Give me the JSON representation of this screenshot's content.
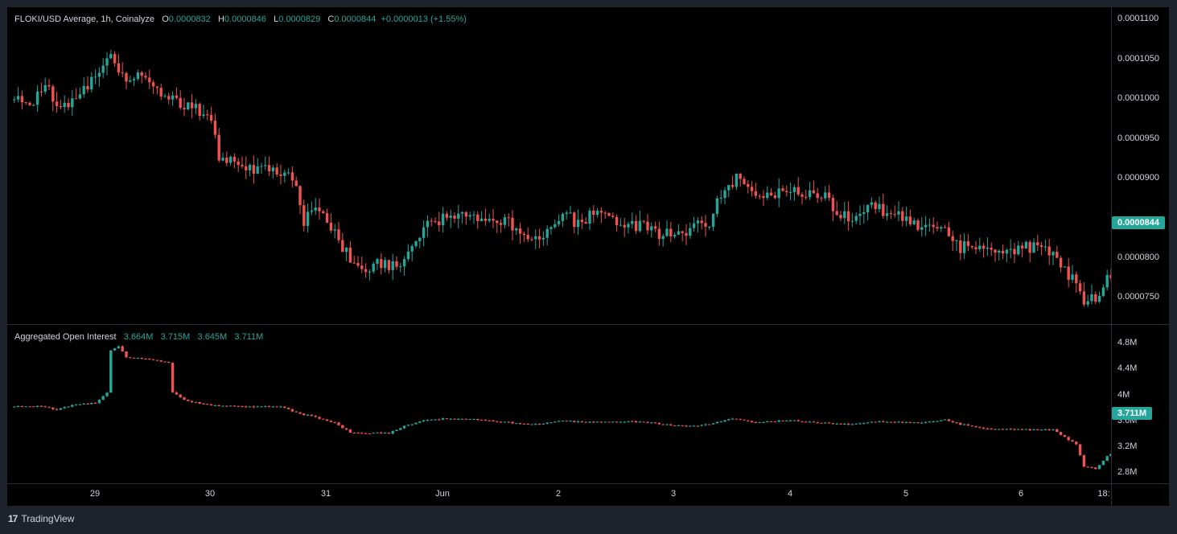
{
  "price_legend": {
    "title": "FLOKI/USD Average, 1h, Coinalyze",
    "o_label": "O",
    "o_value": "0.0000832",
    "h_label": "H",
    "h_value": "0.0000846",
    "l_label": "L",
    "l_value": "0.0000829",
    "c_label": "C",
    "c_value": "0.0000844",
    "change": "+0.0000013 (+1.55%)"
  },
  "oi_legend": {
    "title": "Aggregated Open Interest",
    "o_value": "3.664M",
    "h_value": "3.715M",
    "l_value": "3.645M",
    "c_value": "3.711M"
  },
  "price_axis": [
    "0.0001100",
    "0.0001050",
    "0.0001000",
    "0.0000950",
    "0.0000900",
    "0.0000800",
    "0.0000750"
  ],
  "oi_axis": [
    "4.8M",
    "4.4M",
    "4M",
    "3.6M",
    "3.2M",
    "2.8M"
  ],
  "time_axis": [
    "29",
    "30",
    "31",
    "Jun",
    "2",
    "3",
    "4",
    "5",
    "6",
    "18:"
  ],
  "current_price_tag": "0.0000844",
  "current_oi_tag": "3.711M",
  "footer": {
    "brand": "TradingView",
    "logo_glyph": "17"
  },
  "colors": {
    "up": "#26a69a",
    "down": "#ef5350",
    "background": "#000000",
    "frame": "#1e222d"
  },
  "chart_data": [
    {
      "type": "candlestick",
      "title": "FLOKI/USD Average, 1h, Coinalyze",
      "ylim": [
        7.25e-05,
        0.0001115
      ],
      "x_range": [
        "May 28 01:00",
        "Jun 6 18:00"
      ],
      "resolution": "1h",
      "anchors": [
        {
          "t": 0,
          "v": 0.0001005
        },
        {
          "t": 5,
          "v": 9.98e-05
        },
        {
          "t": 9,
          "v": 0.0001025
        },
        {
          "t": 13,
          "v": 9.93e-05
        },
        {
          "t": 17,
          "v": 0.0001003
        },
        {
          "t": 21,
          "v": 0.000103
        },
        {
          "t": 26,
          "v": 0.0001062
        },
        {
          "t": 30,
          "v": 0.000103
        },
        {
          "t": 34,
          "v": 0.0001037
        },
        {
          "t": 40,
          "v": 0.000101
        },
        {
          "t": 45,
          "v": 9.98e-05
        },
        {
          "t": 52,
          "v": 9.85e-05
        },
        {
          "t": 54,
          "v": 9.3e-05
        },
        {
          "t": 58,
          "v": 9.35e-05
        },
        {
          "t": 62,
          "v": 9.18e-05
        },
        {
          "t": 68,
          "v": 9.22e-05
        },
        {
          "t": 73,
          "v": 9.07e-05
        },
        {
          "t": 76,
          "v": 8.55e-05
        },
        {
          "t": 80,
          "v": 8.7e-05
        },
        {
          "t": 84,
          "v": 8.38e-05
        },
        {
          "t": 88,
          "v": 8.07e-05
        },
        {
          "t": 92,
          "v": 7.97e-05
        },
        {
          "t": 98,
          "v": 8e-05
        },
        {
          "t": 102,
          "v": 8e-05
        },
        {
          "t": 104,
          "v": 8.3e-05
        },
        {
          "t": 108,
          "v": 8.48e-05
        },
        {
          "t": 112,
          "v": 8.55e-05
        },
        {
          "t": 116,
          "v": 8.58e-05
        },
        {
          "t": 122,
          "v": 8.53e-05
        },
        {
          "t": 128,
          "v": 8.52e-05
        },
        {
          "t": 133,
          "v": 8.4e-05
        },
        {
          "t": 136,
          "v": 8.3e-05
        },
        {
          "t": 140,
          "v": 8.5e-05
        },
        {
          "t": 144,
          "v": 8.6e-05
        },
        {
          "t": 147,
          "v": 8.5e-05
        },
        {
          "t": 151,
          "v": 8.62e-05
        },
        {
          "t": 155,
          "v": 8.6e-05
        },
        {
          "t": 160,
          "v": 8.45e-05
        },
        {
          "t": 164,
          "v": 8.48e-05
        },
        {
          "t": 168,
          "v": 8.35e-05
        },
        {
          "t": 174,
          "v": 8.4e-05
        },
        {
          "t": 178,
          "v": 8.48e-05
        },
        {
          "t": 180,
          "v": 8.4e-05
        },
        {
          "t": 183,
          "v": 8.75e-05
        },
        {
          "t": 186,
          "v": 8.95e-05
        },
        {
          "t": 188,
          "v": 9.1e-05
        },
        {
          "t": 191,
          "v": 8.9e-05
        },
        {
          "t": 196,
          "v": 8.88e-05
        },
        {
          "t": 202,
          "v": 8.93e-05
        },
        {
          "t": 208,
          "v": 8.88e-05
        },
        {
          "t": 212,
          "v": 8.8e-05
        },
        {
          "t": 214,
          "v": 8.6e-05
        },
        {
          "t": 218,
          "v": 8.6e-05
        },
        {
          "t": 222,
          "v": 8.7e-05
        },
        {
          "t": 228,
          "v": 8.65e-05
        },
        {
          "t": 232,
          "v": 8.58e-05
        },
        {
          "t": 236,
          "v": 8.43e-05
        },
        {
          "t": 240,
          "v": 8.5e-05
        },
        {
          "t": 243,
          "v": 8.4e-05
        },
        {
          "t": 246,
          "v": 8.2e-05
        },
        {
          "t": 250,
          "v": 8.22e-05
        },
        {
          "t": 254,
          "v": 8.23e-05
        },
        {
          "t": 258,
          "v": 8.15e-05
        },
        {
          "t": 262,
          "v": 8.18e-05
        },
        {
          "t": 266,
          "v": 8.25e-05
        },
        {
          "t": 269,
          "v": 8.15e-05
        },
        {
          "t": 272,
          "v": 8e-05
        },
        {
          "t": 276,
          "v": 7.75e-05
        },
        {
          "t": 278,
          "v": 7.52e-05
        },
        {
          "t": 281,
          "v": 7.6e-05
        },
        {
          "t": 284,
          "v": 7.82e-05
        },
        {
          "t": 288,
          "v": 7.95e-05
        },
        {
          "t": 291,
          "v": 8.1e-05
        },
        {
          "t": 294,
          "v": 8.35e-05
        },
        {
          "t": 296,
          "v": 8.44e-05
        }
      ]
    },
    {
      "type": "candlestick",
      "title": "Aggregated Open Interest",
      "ylim": [
        2.7,
        5.0
      ],
      "units": "M",
      "x_range": [
        "May 28 01:00",
        "Jun 6 18:00"
      ],
      "resolution": "1h",
      "anchors": [
        {
          "t": 0,
          "v": 3.84
        },
        {
          "t": 8,
          "v": 3.85
        },
        {
          "t": 12,
          "v": 3.8
        },
        {
          "t": 16,
          "v": 3.86
        },
        {
          "t": 22,
          "v": 3.9
        },
        {
          "t": 25,
          "v": 4.05
        },
        {
          "t": 26,
          "v": 4.68
        },
        {
          "t": 28,
          "v": 4.75
        },
        {
          "t": 30,
          "v": 4.58
        },
        {
          "t": 36,
          "v": 4.55
        },
        {
          "t": 41,
          "v": 4.5
        },
        {
          "t": 42,
          "v": 4.05
        },
        {
          "t": 46,
          "v": 3.92
        },
        {
          "t": 54,
          "v": 3.85
        },
        {
          "t": 58,
          "v": 3.86
        },
        {
          "t": 62,
          "v": 3.84
        },
        {
          "t": 70,
          "v": 3.85
        },
        {
          "t": 74,
          "v": 3.75
        },
        {
          "t": 78,
          "v": 3.7
        },
        {
          "t": 84,
          "v": 3.6
        },
        {
          "t": 88,
          "v": 3.46
        },
        {
          "t": 92,
          "v": 3.45
        },
        {
          "t": 98,
          "v": 3.45
        },
        {
          "t": 102,
          "v": 3.55
        },
        {
          "t": 106,
          "v": 3.63
        },
        {
          "t": 112,
          "v": 3.66
        },
        {
          "t": 120,
          "v": 3.65
        },
        {
          "t": 130,
          "v": 3.6
        },
        {
          "t": 136,
          "v": 3.58
        },
        {
          "t": 142,
          "v": 3.63
        },
        {
          "t": 150,
          "v": 3.61
        },
        {
          "t": 160,
          "v": 3.62
        },
        {
          "t": 166,
          "v": 3.6
        },
        {
          "t": 170,
          "v": 3.57
        },
        {
          "t": 178,
          "v": 3.55
        },
        {
          "t": 184,
          "v": 3.62
        },
        {
          "t": 187,
          "v": 3.67
        },
        {
          "t": 192,
          "v": 3.61
        },
        {
          "t": 202,
          "v": 3.64
        },
        {
          "t": 210,
          "v": 3.6
        },
        {
          "t": 216,
          "v": 3.58
        },
        {
          "t": 226,
          "v": 3.62
        },
        {
          "t": 236,
          "v": 3.6
        },
        {
          "t": 242,
          "v": 3.65
        },
        {
          "t": 246,
          "v": 3.58
        },
        {
          "t": 252,
          "v": 3.52
        },
        {
          "t": 262,
          "v": 3.5
        },
        {
          "t": 270,
          "v": 3.5
        },
        {
          "t": 274,
          "v": 3.35
        },
        {
          "t": 276,
          "v": 3.28
        },
        {
          "t": 278,
          "v": 2.95
        },
        {
          "t": 281,
          "v": 2.92
        },
        {
          "t": 284,
          "v": 3.1
        },
        {
          "t": 288,
          "v": 3.27
        },
        {
          "t": 293,
          "v": 3.32
        },
        {
          "t": 294,
          "v": 3.66
        },
        {
          "t": 296,
          "v": 3.71
        }
      ]
    }
  ]
}
